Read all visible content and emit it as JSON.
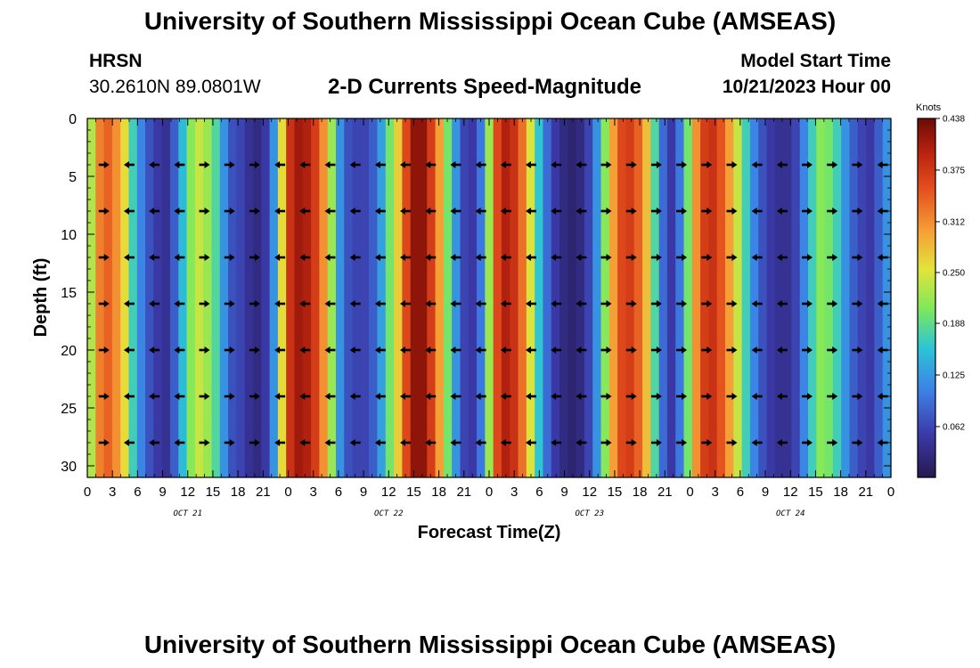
{
  "header": {
    "title": "University of Southern Mississippi Ocean Cube (AMSEAS)",
    "station": "HRSN",
    "coords": "30.2610N  89.0801W",
    "subtitle": "2-D Currents Speed-Magnitude",
    "model_label": "Model Start Time",
    "model_time": "10/21/2023 Hour 00"
  },
  "footer_title": "University of Southern Mississippi Ocean Cube (AMSEAS)",
  "chart_data": {
    "type": "heatmap",
    "title": "2-D Currents Speed-Magnitude",
    "xlabel": "Forecast Time(Z)",
    "ylabel": "Depth (ft)",
    "xlim": [
      0,
      96
    ],
    "ylim": [
      0,
      31
    ],
    "x_ticks": [
      0,
      3,
      6,
      9,
      12,
      15,
      18,
      21,
      24,
      27,
      30,
      33,
      36,
      39,
      42,
      45,
      48,
      51,
      54,
      57,
      60,
      63,
      66,
      69,
      72,
      75,
      78,
      81,
      84,
      87,
      90,
      93,
      96
    ],
    "x_tick_labels": [
      "0",
      "3",
      "6",
      "9",
      "12",
      "15",
      "18",
      "21",
      "0",
      "3",
      "6",
      "9",
      "12",
      "15",
      "18",
      "21",
      "0",
      "3",
      "6",
      "9",
      "12",
      "15",
      "18",
      "21",
      "0",
      "3",
      "6",
      "9",
      "12",
      "15",
      "18",
      "21",
      "0"
    ],
    "y_ticks": [
      0,
      5,
      10,
      15,
      20,
      25,
      30
    ],
    "y_tick_labels": [
      "0",
      "5",
      "10",
      "15",
      "20",
      "25",
      "30"
    ],
    "day_labels": [
      {
        "label": "OCT 21",
        "x": 12
      },
      {
        "label": "OCT 22",
        "x": 36
      },
      {
        "label": "OCT 23",
        "x": 60
      },
      {
        "label": "OCT 24",
        "x": 84
      }
    ],
    "colorbar": {
      "title": "Knots",
      "min": 0,
      "max": 0.438,
      "ticks": [
        0.438,
        0.375,
        0.312,
        0.25,
        0.188,
        0.125,
        0.062
      ]
    },
    "speed_profile_knots": [
      0.23,
      0.32,
      0.34,
      0.31,
      0.26,
      0.17,
      0.11,
      0.07,
      0.05,
      0.04,
      0.08,
      0.15,
      0.21,
      0.24,
      0.22,
      0.18,
      0.12,
      0.07,
      0.06,
      0.04,
      0.03,
      0.05,
      0.12,
      0.26,
      0.38,
      0.41,
      0.4,
      0.37,
      0.31,
      0.22,
      0.12,
      0.07,
      0.06,
      0.06,
      0.08,
      0.13,
      0.2,
      0.27,
      0.36,
      0.42,
      0.42,
      0.37,
      0.3,
      0.2,
      0.12,
      0.06,
      0.05,
      0.1,
      0.22,
      0.36,
      0.4,
      0.38,
      0.33,
      0.25,
      0.16,
      0.09,
      0.05,
      0.03,
      0.02,
      0.03,
      0.06,
      0.12,
      0.21,
      0.3,
      0.36,
      0.37,
      0.34,
      0.28,
      0.18,
      0.09,
      0.05,
      0.1,
      0.2,
      0.31,
      0.37,
      0.38,
      0.35,
      0.3,
      0.24,
      0.17,
      0.11,
      0.07,
      0.05,
      0.04,
      0.04,
      0.06,
      0.11,
      0.17,
      0.21,
      0.2,
      0.17,
      0.12,
      0.08,
      0.06,
      0.05,
      0.08,
      0.12
    ],
    "vector_depths_ft": [
      4,
      8,
      12,
      16,
      20,
      24,
      28
    ],
    "vector_times_hr": [
      2,
      5,
      8,
      11,
      14,
      17,
      20,
      23,
      26,
      29,
      32,
      35,
      38,
      41,
      44,
      47,
      50,
      53,
      56,
      59,
      62,
      65,
      68,
      71,
      74,
      77,
      80,
      83,
      86,
      89,
      92,
      95
    ],
    "vector_directions": [
      "E",
      "W",
      "W",
      "W",
      "E",
      "E",
      "E",
      "W",
      "W",
      "W",
      "W",
      "W",
      "W",
      "W",
      "W",
      "W",
      "W",
      "W",
      "W",
      "W",
      "E",
      "E",
      "E",
      "E",
      "E",
      "E",
      "W",
      "W",
      "E",
      "E",
      "E",
      "W"
    ]
  }
}
